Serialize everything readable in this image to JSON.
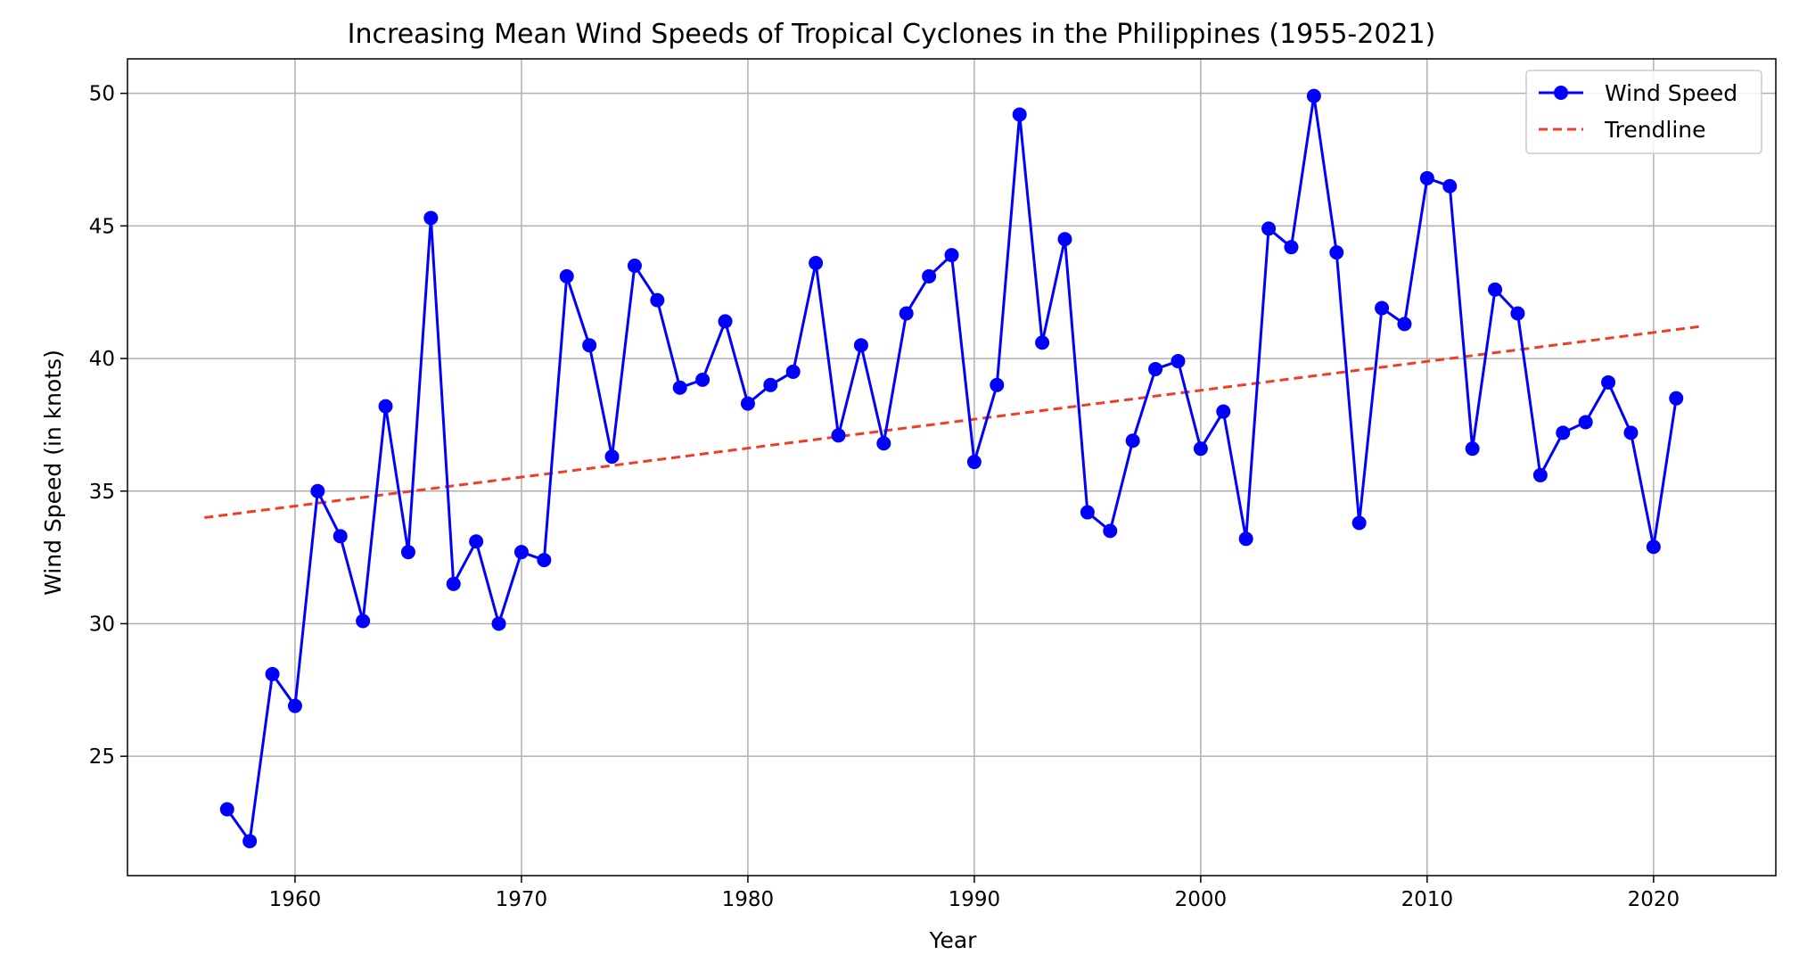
{
  "chart_data": {
    "type": "line",
    "title": "Increasing Mean Wind Speeds of Tropical Cyclones in the Philippines (1955-2021)",
    "xlabel": "Year",
    "ylabel": "Wind Speed (in knots)",
    "xlim": [
      1952.6,
      2025.4
    ],
    "ylim": [
      20.5,
      51.3
    ],
    "xticks": [
      1960,
      1970,
      1980,
      1990,
      2000,
      2010,
      2020
    ],
    "yticks": [
      25,
      30,
      35,
      40,
      45,
      50
    ],
    "grid": true,
    "legend_position": "top-right",
    "series": [
      {
        "name": "Wind Speed",
        "style": "solid line with circle markers",
        "color": "#0000ff",
        "x": [
          1957,
          1958,
          1959,
          1960,
          1961,
          1962,
          1963,
          1964,
          1965,
          1966,
          1967,
          1968,
          1969,
          1970,
          1971,
          1972,
          1973,
          1974,
          1975,
          1976,
          1977,
          1978,
          1979,
          1980,
          1981,
          1982,
          1983,
          1984,
          1985,
          1986,
          1987,
          1988,
          1989,
          1990,
          1991,
          1992,
          1993,
          1994,
          1995,
          1996,
          1997,
          1998,
          1999,
          2000,
          2001,
          2002,
          2003,
          2004,
          2005,
          2006,
          2007,
          2008,
          2009,
          2010,
          2011,
          2012,
          2013,
          2014,
          2015,
          2016,
          2017,
          2018,
          2019,
          2020,
          2021
        ],
        "values": [
          23.0,
          21.8,
          28.1,
          26.9,
          35.0,
          33.3,
          30.1,
          38.2,
          32.7,
          45.3,
          31.5,
          33.1,
          30.0,
          32.7,
          32.4,
          43.1,
          40.5,
          36.3,
          43.5,
          42.2,
          38.9,
          39.2,
          41.4,
          38.3,
          39.0,
          39.5,
          43.6,
          37.1,
          40.5,
          36.8,
          41.7,
          43.1,
          43.9,
          36.1,
          39.0,
          49.2,
          40.6,
          44.5,
          34.2,
          33.5,
          36.9,
          39.6,
          39.9,
          36.6,
          38.0,
          33.2,
          44.9,
          44.2,
          49.9,
          44.0,
          33.8,
          41.9,
          41.3,
          46.8,
          46.5,
          36.6,
          42.6,
          41.7,
          35.6,
          37.2,
          37.6,
          39.1,
          37.2,
          32.9,
          38.5
        ]
      },
      {
        "name": "Trendline",
        "style": "dashed line",
        "color": "#f03c28",
        "x": [
          1956,
          2022
        ],
        "values": [
          34.0,
          41.2
        ]
      }
    ]
  }
}
